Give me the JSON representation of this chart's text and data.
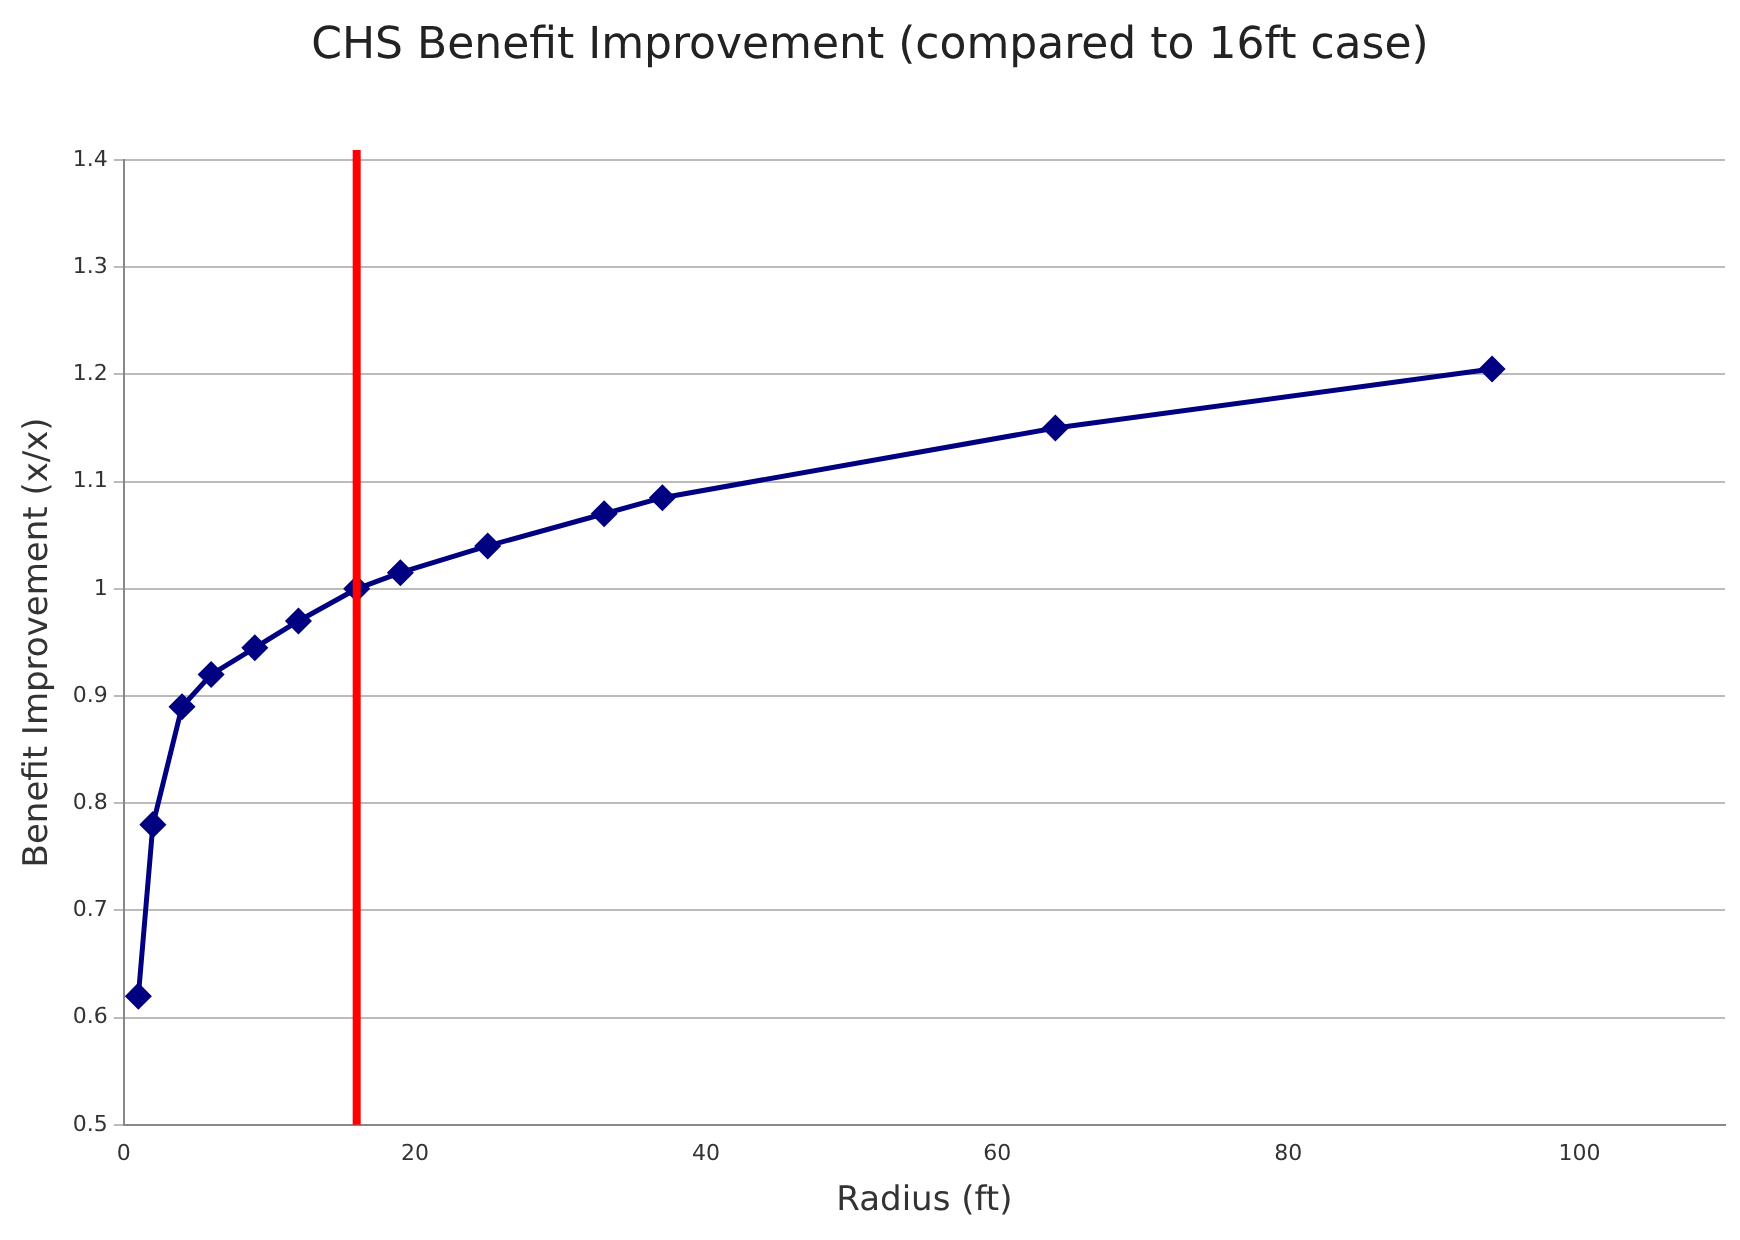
{
  "chart_data": {
    "type": "line",
    "title": "CHS Benefit Improvement (compared to 16ft case)",
    "xlabel": "Radius (ft)",
    "ylabel": "Benefit Improvement (x/x)",
    "x": [
      1,
      2,
      4,
      6,
      9,
      12,
      16,
      19,
      25,
      33,
      37,
      64,
      94
    ],
    "series": [
      {
        "color": "#000080",
        "values": [
          0.62,
          0.78,
          0.89,
          0.92,
          0.945,
          0.97,
          1.0,
          1.015,
          1.04,
          1.07,
          1.085,
          1.15,
          1.205
        ]
      }
    ],
    "xlim": [
      0,
      110
    ],
    "xticks": [
      0,
      20,
      40,
      60,
      80,
      100
    ],
    "ylim": [
      0.5,
      1.4
    ],
    "yticks": [
      0.5,
      0.6,
      0.7,
      0.8,
      0.9,
      1,
      1.1,
      1.2,
      1.3,
      1.4
    ],
    "ref_lines": [
      {
        "axis": "x",
        "value": 16,
        "color": "#ff0000"
      }
    ],
    "grid": "y",
    "marker": "diamond",
    "line_style": "solid",
    "legend": false
  }
}
